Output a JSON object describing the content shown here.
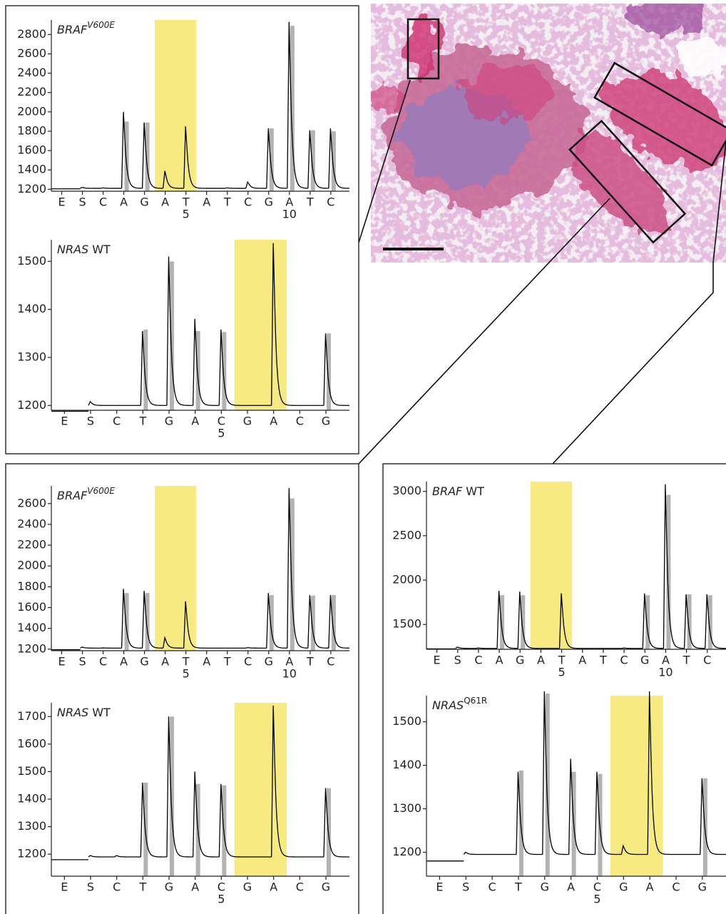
{
  "chart_data": [
    {
      "type": "pyrogram",
      "title": [
        {
          "text": "BRAF",
          "style": "italic"
        },
        {
          "text": "V600E",
          "style": "italic-sup"
        }
      ],
      "categories": [
        "E",
        "S",
        "C",
        "A",
        "G",
        "A",
        "T",
        "A",
        "T",
        "C",
        "G",
        "A",
        "T",
        "C"
      ],
      "x_sublabels": [
        null,
        null,
        null,
        null,
        null,
        null,
        "5",
        null,
        null,
        null,
        null,
        "10",
        null,
        null
      ],
      "series": [
        {
          "style": "trace",
          "color": "#000000",
          "values": [
            1205,
            1220,
            1215,
            2000,
            1890,
            1390,
            1850,
            1210,
            1215,
            1275,
            1830,
            2930,
            1810,
            1830
          ]
        },
        {
          "style": "bar",
          "color": "#b3b3b3",
          "values": [
            null,
            null,
            null,
            1900,
            1890,
            null,
            null,
            null,
            null,
            null,
            1830,
            2890,
            1810,
            1800
          ]
        }
      ],
      "baseline": 1210,
      "highlight": {
        "from": 5,
        "to": 6,
        "color": "#f6ea80"
      },
      "ylim": [
        1180,
        2950
      ],
      "yticks": [
        1200,
        1400,
        1600,
        1800,
        2000,
        2200,
        2400,
        2600,
        2800
      ]
    },
    {
      "type": "pyrogram",
      "title": [
        {
          "text": "NRAS",
          "style": "italic"
        },
        {
          "text": "WT",
          "style": "normal"
        }
      ],
      "categories": [
        "E",
        "S",
        "C",
        "T",
        "G",
        "A",
        "C",
        "G",
        "A",
        "C",
        "G"
      ],
      "x_sublabels": [
        null,
        null,
        null,
        null,
        null,
        null,
        "5",
        null,
        null,
        null,
        null
      ],
      "series": [
        {
          "style": "trace",
          "color": "#000000",
          "values": [
            1188,
            1208,
            1200,
            1355,
            1510,
            1380,
            1358,
            1200,
            1538,
            1200,
            1350
          ]
        },
        {
          "style": "bar",
          "color": "#b3b3b3",
          "values": [
            null,
            null,
            null,
            1358,
            1500,
            1355,
            1353,
            null,
            null,
            null,
            1350
          ]
        }
      ],
      "baseline": 1200,
      "highlight": {
        "from": 7,
        "to": 8,
        "color": "#f6ea80"
      },
      "ylim": [
        1190,
        1545
      ],
      "yticks": [
        1200,
        1300,
        1400,
        1500
      ]
    },
    {
      "type": "pyrogram",
      "title": [
        {
          "text": "BRAF",
          "style": "italic"
        },
        {
          "text": "V600E",
          "style": "italic-sup"
        }
      ],
      "categories": [
        "E",
        "S",
        "C",
        "A",
        "G",
        "A",
        "T",
        "A",
        "T",
        "C",
        "G",
        "A",
        "T",
        "C"
      ],
      "x_sublabels": [
        null,
        null,
        null,
        null,
        null,
        null,
        "5",
        null,
        null,
        null,
        null,
        "10",
        null,
        null
      ],
      "series": [
        {
          "style": "trace",
          "color": "#000000",
          "values": [
            1195,
            1220,
            1212,
            1780,
            1760,
            1310,
            1660,
            1210,
            1210,
            1215,
            1740,
            2750,
            1720,
            1720
          ]
        },
        {
          "style": "bar",
          "color": "#b3b3b3",
          "values": [
            null,
            null,
            null,
            1740,
            1740,
            null,
            null,
            null,
            null,
            null,
            1720,
            2650,
            1715,
            1720
          ]
        }
      ],
      "baseline": 1210,
      "highlight": {
        "from": 5,
        "to": 6,
        "color": "#f6ea80"
      },
      "ylim": [
        1185,
        2770
      ],
      "yticks": [
        1200,
        1400,
        1600,
        1800,
        2000,
        2200,
        2400,
        2600
      ]
    },
    {
      "type": "pyrogram",
      "title": [
        {
          "text": "NRAS",
          "style": "italic"
        },
        {
          "text": "WT",
          "style": "normal"
        }
      ],
      "categories": [
        "E",
        "S",
        "C",
        "T",
        "G",
        "A",
        "C",
        "G",
        "A",
        "C",
        "G"
      ],
      "x_sublabels": [
        null,
        null,
        null,
        null,
        null,
        null,
        "5",
        null,
        null,
        null,
        null
      ],
      "series": [
        {
          "style": "trace",
          "color": "#000000",
          "values": [
            1180,
            1195,
            1195,
            1460,
            1700,
            1500,
            1455,
            1190,
            1740,
            1190,
            1440
          ]
        },
        {
          "style": "bar",
          "color": "#b3b3b3",
          "values": [
            null,
            null,
            null,
            1460,
            1700,
            1455,
            1450,
            null,
            null,
            null,
            1440
          ]
        }
      ],
      "baseline": 1190,
      "highlight": {
        "from": 7,
        "to": 8,
        "color": "#f6ea80"
      },
      "ylim": [
        1120,
        1750
      ],
      "yticks": [
        1200,
        1300,
        1400,
        1500,
        1600,
        1700
      ]
    },
    {
      "type": "pyrogram",
      "title": [
        {
          "text": "BRAF",
          "style": "italic"
        },
        {
          "text": "WT",
          "style": "normal"
        }
      ],
      "categories": [
        "E",
        "S",
        "C",
        "A",
        "G",
        "A",
        "T",
        "A",
        "T",
        "C",
        "G",
        "A",
        "T",
        "C"
      ],
      "x_sublabels": [
        null,
        null,
        null,
        null,
        null,
        null,
        "5",
        null,
        null,
        null,
        null,
        "10",
        null,
        null
      ],
      "series": [
        {
          "style": "trace",
          "color": "#000000",
          "values": [
            1225,
            1245,
            1235,
            1880,
            1870,
            1230,
            1850,
            1230,
            1230,
            1235,
            1850,
            3080,
            1840,
            1840
          ]
        },
        {
          "style": "bar",
          "color": "#b3b3b3",
          "values": [
            null,
            null,
            null,
            1830,
            1830,
            null,
            null,
            null,
            null,
            null,
            1830,
            2960,
            1840,
            1830
          ]
        }
      ],
      "baseline": 1230,
      "highlight": {
        "from": 5,
        "to": 6,
        "color": "#f6ea80"
      },
      "ylim": [
        1220,
        3110
      ],
      "yticks": [
        1500,
        2000,
        2500,
        3000
      ]
    },
    {
      "type": "pyrogram",
      "title": [
        {
          "text": "NRAS",
          "style": "italic"
        },
        {
          "text": "Q61R",
          "style": "sup"
        }
      ],
      "categories": [
        "E",
        "S",
        "C",
        "T",
        "G",
        "A",
        "C",
        "G",
        "A",
        "C",
        "G"
      ],
      "x_sublabels": [
        null,
        null,
        null,
        null,
        null,
        null,
        "5",
        null,
        null,
        null,
        null
      ],
      "series": [
        {
          "style": "trace",
          "color": "#000000",
          "values": [
            1180,
            1200,
            1195,
            1385,
            1570,
            1415,
            1385,
            1215,
            1570,
            1195,
            1370
          ]
        },
        {
          "style": "bar",
          "color": "#b3b3b3",
          "values": [
            null,
            null,
            null,
            1388,
            1565,
            1385,
            1380,
            null,
            null,
            null,
            1370
          ]
        }
      ],
      "baseline": 1195,
      "highlight": {
        "from": 7,
        "to": 8,
        "color": "#f6ea80"
      },
      "ylim": [
        1145,
        1560
      ],
      "yticks": [
        1200,
        1300,
        1400,
        1500
      ]
    }
  ]
}
